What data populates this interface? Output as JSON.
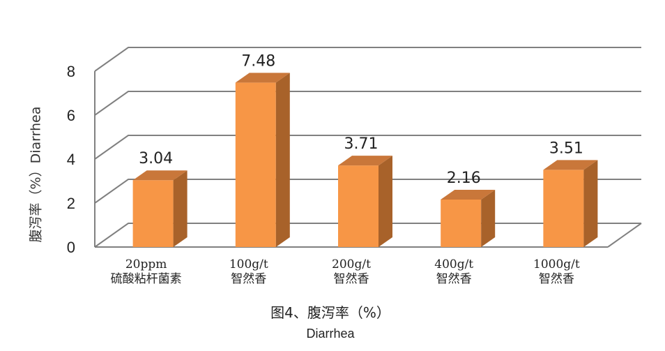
{
  "chart_data": {
    "type": "bar",
    "categories": [
      [
        "20ppm",
        "硫酸粘杆菌素"
      ],
      [
        "100g/t",
        "智然香"
      ],
      [
        "200g/t",
        "智然香"
      ],
      [
        "400g/t",
        "智然香"
      ],
      [
        "1000g/t",
        "智然香"
      ]
    ],
    "values": [
      3.04,
      7.48,
      3.71,
      2.16,
      3.51
    ],
    "data_labels": [
      "3.04",
      "7.48",
      "3.71",
      "2.16",
      "3.51"
    ],
    "ylabel": "腹泻率（%）Diarrhea",
    "ylim": [
      0,
      8
    ],
    "yticks": [
      "0",
      "2",
      "4",
      "6",
      "8"
    ],
    "grid": true,
    "style": "3d-column",
    "colors": {
      "bar_front": "#F79646",
      "bar_side": "#A8622A",
      "bar_top": "#C9773A",
      "grid": "#808080"
    }
  },
  "caption": {
    "line1": "图4、腹泻率（%）",
    "line2": "Diarrhea"
  }
}
